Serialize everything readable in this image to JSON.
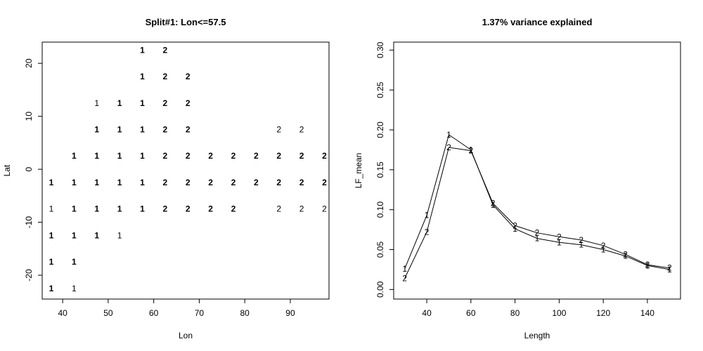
{
  "chart_data": [
    {
      "type": "scatter",
      "title": "Split#1: Lon<=57.5",
      "xlabel": "Lon",
      "ylabel": "Lat",
      "xlim": [
        35.5,
        98.5
      ],
      "ylim": [
        -24.5,
        24
      ],
      "x_ticks": [
        40,
        50,
        60,
        70,
        80,
        90
      ],
      "y_ticks": [
        -20,
        -10,
        0,
        10,
        20
      ],
      "grid": false,
      "points": [
        {
          "x": 57.5,
          "y": 22.5,
          "label": "1",
          "bold": true
        },
        {
          "x": 62.5,
          "y": 22.5,
          "label": "2",
          "bold": true
        },
        {
          "x": 57.5,
          "y": 17.5,
          "label": "1",
          "bold": true
        },
        {
          "x": 62.5,
          "y": 17.5,
          "label": "2",
          "bold": true
        },
        {
          "x": 67.5,
          "y": 17.5,
          "label": "2",
          "bold": true
        },
        {
          "x": 47.5,
          "y": 12.5,
          "label": "1",
          "bold": false
        },
        {
          "x": 52.5,
          "y": 12.5,
          "label": "1",
          "bold": true
        },
        {
          "x": 57.5,
          "y": 12.5,
          "label": "1",
          "bold": true
        },
        {
          "x": 62.5,
          "y": 12.5,
          "label": "2",
          "bold": true
        },
        {
          "x": 67.5,
          "y": 12.5,
          "label": "2",
          "bold": true
        },
        {
          "x": 47.5,
          "y": 7.5,
          "label": "1",
          "bold": true
        },
        {
          "x": 52.5,
          "y": 7.5,
          "label": "1",
          "bold": true
        },
        {
          "x": 57.5,
          "y": 7.5,
          "label": "1",
          "bold": true
        },
        {
          "x": 62.5,
          "y": 7.5,
          "label": "2",
          "bold": true
        },
        {
          "x": 67.5,
          "y": 7.5,
          "label": "2",
          "bold": true
        },
        {
          "x": 87.5,
          "y": 7.5,
          "label": "2",
          "bold": false
        },
        {
          "x": 92.5,
          "y": 7.5,
          "label": "2",
          "bold": false
        },
        {
          "x": 42.5,
          "y": 2.5,
          "label": "1",
          "bold": true
        },
        {
          "x": 47.5,
          "y": 2.5,
          "label": "1",
          "bold": true
        },
        {
          "x": 52.5,
          "y": 2.5,
          "label": "1",
          "bold": true
        },
        {
          "x": 57.5,
          "y": 2.5,
          "label": "1",
          "bold": true
        },
        {
          "x": 62.5,
          "y": 2.5,
          "label": "2",
          "bold": true
        },
        {
          "x": 67.5,
          "y": 2.5,
          "label": "2",
          "bold": true
        },
        {
          "x": 72.5,
          "y": 2.5,
          "label": "2",
          "bold": true
        },
        {
          "x": 77.5,
          "y": 2.5,
          "label": "2",
          "bold": true
        },
        {
          "x": 82.5,
          "y": 2.5,
          "label": "2",
          "bold": true
        },
        {
          "x": 87.5,
          "y": 2.5,
          "label": "2",
          "bold": true
        },
        {
          "x": 92.5,
          "y": 2.5,
          "label": "2",
          "bold": true
        },
        {
          "x": 97.5,
          "y": 2.5,
          "label": "2",
          "bold": true
        },
        {
          "x": 37.5,
          "y": -2.5,
          "label": "1",
          "bold": true
        },
        {
          "x": 42.5,
          "y": -2.5,
          "label": "1",
          "bold": true
        },
        {
          "x": 47.5,
          "y": -2.5,
          "label": "1",
          "bold": true
        },
        {
          "x": 52.5,
          "y": -2.5,
          "label": "1",
          "bold": true
        },
        {
          "x": 57.5,
          "y": -2.5,
          "label": "1",
          "bold": true
        },
        {
          "x": 62.5,
          "y": -2.5,
          "label": "2",
          "bold": true
        },
        {
          "x": 67.5,
          "y": -2.5,
          "label": "2",
          "bold": true
        },
        {
          "x": 72.5,
          "y": -2.5,
          "label": "2",
          "bold": true
        },
        {
          "x": 77.5,
          "y": -2.5,
          "label": "2",
          "bold": true
        },
        {
          "x": 82.5,
          "y": -2.5,
          "label": "2",
          "bold": true
        },
        {
          "x": 87.5,
          "y": -2.5,
          "label": "2",
          "bold": true
        },
        {
          "x": 92.5,
          "y": -2.5,
          "label": "2",
          "bold": true
        },
        {
          "x": 97.5,
          "y": -2.5,
          "label": "2",
          "bold": true
        },
        {
          "x": 37.5,
          "y": -7.5,
          "label": "1",
          "bold": false
        },
        {
          "x": 42.5,
          "y": -7.5,
          "label": "1",
          "bold": true
        },
        {
          "x": 47.5,
          "y": -7.5,
          "label": "1",
          "bold": true
        },
        {
          "x": 52.5,
          "y": -7.5,
          "label": "1",
          "bold": true
        },
        {
          "x": 57.5,
          "y": -7.5,
          "label": "1",
          "bold": true
        },
        {
          "x": 62.5,
          "y": -7.5,
          "label": "2",
          "bold": true
        },
        {
          "x": 67.5,
          "y": -7.5,
          "label": "2",
          "bold": true
        },
        {
          "x": 72.5,
          "y": -7.5,
          "label": "2",
          "bold": true
        },
        {
          "x": 77.5,
          "y": -7.5,
          "label": "2",
          "bold": true
        },
        {
          "x": 87.5,
          "y": -7.5,
          "label": "2",
          "bold": false
        },
        {
          "x": 92.5,
          "y": -7.5,
          "label": "2",
          "bold": false
        },
        {
          "x": 97.5,
          "y": -7.5,
          "label": "2",
          "bold": false
        },
        {
          "x": 37.5,
          "y": -12.5,
          "label": "1",
          "bold": true
        },
        {
          "x": 42.5,
          "y": -12.5,
          "label": "1",
          "bold": true
        },
        {
          "x": 47.5,
          "y": -12.5,
          "label": "1",
          "bold": true
        },
        {
          "x": 52.5,
          "y": -12.5,
          "label": "1",
          "bold": false
        },
        {
          "x": 37.5,
          "y": -17.5,
          "label": "1",
          "bold": true
        },
        {
          "x": 42.5,
          "y": -17.5,
          "label": "1",
          "bold": true
        },
        {
          "x": 37.5,
          "y": -22.5,
          "label": "1",
          "bold": true
        },
        {
          "x": 42.5,
          "y": -22.5,
          "label": "1",
          "bold": false
        }
      ]
    },
    {
      "type": "line",
      "title": "1.37% variance explained",
      "xlabel": "Length",
      "ylabel": "LF_mean",
      "xlim": [
        25,
        155
      ],
      "ylim": [
        -0.012,
        0.31
      ],
      "x_ticks": [
        40,
        60,
        80,
        100,
        120,
        140
      ],
      "y_ticks": [
        0.0,
        0.05,
        0.1,
        0.15,
        0.2,
        0.25,
        0.3
      ],
      "y_tick_labels": [
        "0.00",
        "0.05",
        "0.10",
        "0.15",
        "0.20",
        "0.25",
        "0.30"
      ],
      "grid": false,
      "x": [
        30,
        40,
        50,
        60,
        70,
        80,
        90,
        100,
        110,
        120,
        130,
        140,
        150
      ],
      "series": [
        {
          "name": "1",
          "values": [
            0.026,
            0.093,
            0.194,
            0.175,
            0.106,
            0.076,
            0.064,
            0.059,
            0.056,
            0.05,
            0.042,
            0.03,
            0.025
          ]
        },
        {
          "name": "2",
          "values": [
            0.014,
            0.072,
            0.178,
            0.174,
            0.108,
            0.08,
            0.071,
            0.066,
            0.062,
            0.055,
            0.044,
            0.031,
            0.027
          ]
        }
      ]
    }
  ]
}
